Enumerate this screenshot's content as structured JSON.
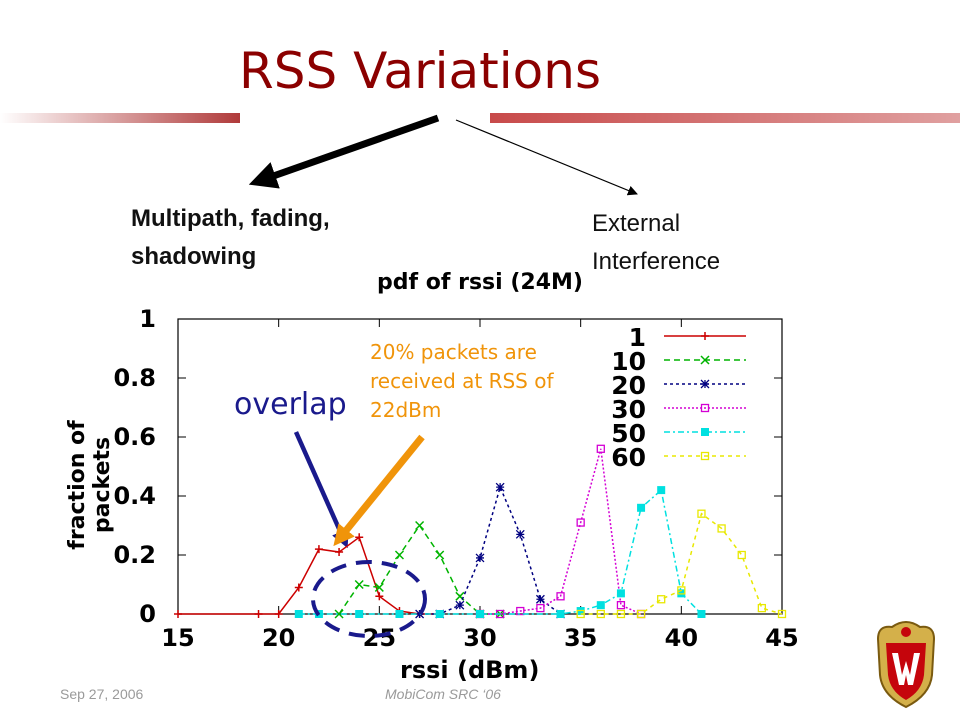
{
  "slide": {
    "title": "RSS Variations",
    "cause_left": "Multipath, fading, shadowing",
    "cause_right": "External Interference",
    "overlap_label": "overlap",
    "note": "20% packets are received at RSS of 22dBm",
    "footer_date": "Sep 27, 2006",
    "footer_conf": "MobiCom SRC ‘06"
  },
  "colors": {
    "title": "#8b0000",
    "accent_bar": "#b03a3a",
    "note": "#f0940a",
    "overlap": "#1a1a8c"
  },
  "chart_data": {
    "type": "line",
    "title": "pdf of rssi (24M)",
    "xlabel": "rssi (dBm)",
    "ylabel": "fraction of packets",
    "xlim": [
      15,
      45
    ],
    "ylim": [
      0,
      1
    ],
    "x_ticks": [
      "15",
      "20",
      "25",
      "30",
      "35",
      "40",
      "45"
    ],
    "y_ticks": [
      "0",
      "0.2",
      "0.4",
      "0.6",
      "0.8",
      "1"
    ],
    "legend_position": "top-right",
    "series": [
      {
        "name": "1",
        "color": "#cc0000",
        "marker": "plus",
        "dash": "",
        "points": [
          [
            15,
            0
          ],
          [
            19,
            0
          ],
          [
            20,
            0
          ],
          [
            21,
            0.09
          ],
          [
            22,
            0.22
          ],
          [
            23,
            0.21
          ],
          [
            24,
            0.26
          ],
          [
            25,
            0.06
          ],
          [
            26,
            0.01
          ],
          [
            27,
            0
          ],
          [
            28,
            0
          ]
        ]
      },
      {
        "name": "10",
        "color": "#00b400",
        "marker": "x",
        "dash": "6,4",
        "points": [
          [
            23,
            0
          ],
          [
            24,
            0.1
          ],
          [
            25,
            0.09
          ],
          [
            26,
            0.2
          ],
          [
            27,
            0.3
          ],
          [
            28,
            0.2
          ],
          [
            29,
            0.06
          ],
          [
            30,
            0
          ],
          [
            31,
            0
          ]
        ]
      },
      {
        "name": "20",
        "color": "#000080",
        "marker": "star",
        "dash": "3,3",
        "points": [
          [
            27,
            0
          ],
          [
            28,
            0
          ],
          [
            29,
            0.03
          ],
          [
            30,
            0.19
          ],
          [
            31,
            0.43
          ],
          [
            32,
            0.27
          ],
          [
            33,
            0.05
          ],
          [
            34,
            0
          ]
        ]
      },
      {
        "name": "30",
        "color": "#d400d4",
        "marker": "square-open",
        "dash": "2,2",
        "points": [
          [
            30,
            0
          ],
          [
            31,
            0
          ],
          [
            32,
            0.01
          ],
          [
            33,
            0.02
          ],
          [
            34,
            0.06
          ],
          [
            35,
            0.31
          ],
          [
            36,
            0.56
          ],
          [
            37,
            0.03
          ],
          [
            38,
            0
          ]
        ]
      },
      {
        "name": "50",
        "color": "#00e0e0",
        "marker": "square",
        "dash": "6,3,2,3",
        "points": [
          [
            21,
            0
          ],
          [
            22,
            0
          ],
          [
            24,
            0
          ],
          [
            26,
            0
          ],
          [
            28,
            0
          ],
          [
            30,
            0
          ],
          [
            34,
            0
          ],
          [
            35,
            0.01
          ],
          [
            36,
            0.03
          ],
          [
            37,
            0.07
          ],
          [
            38,
            0.36
          ],
          [
            39,
            0.42
          ],
          [
            40,
            0.07
          ],
          [
            41,
            0
          ]
        ]
      },
      {
        "name": "60",
        "color": "#e8e800",
        "marker": "square-open",
        "dash": "4,4",
        "points": [
          [
            35,
            0
          ],
          [
            36,
            0
          ],
          [
            37,
            0
          ],
          [
            38,
            0
          ],
          [
            39,
            0.05
          ],
          [
            40,
            0.08
          ],
          [
            41,
            0.34
          ],
          [
            42,
            0.29
          ],
          [
            43,
            0.2
          ],
          [
            44,
            0.02
          ],
          [
            45,
            0
          ]
        ]
      }
    ]
  }
}
